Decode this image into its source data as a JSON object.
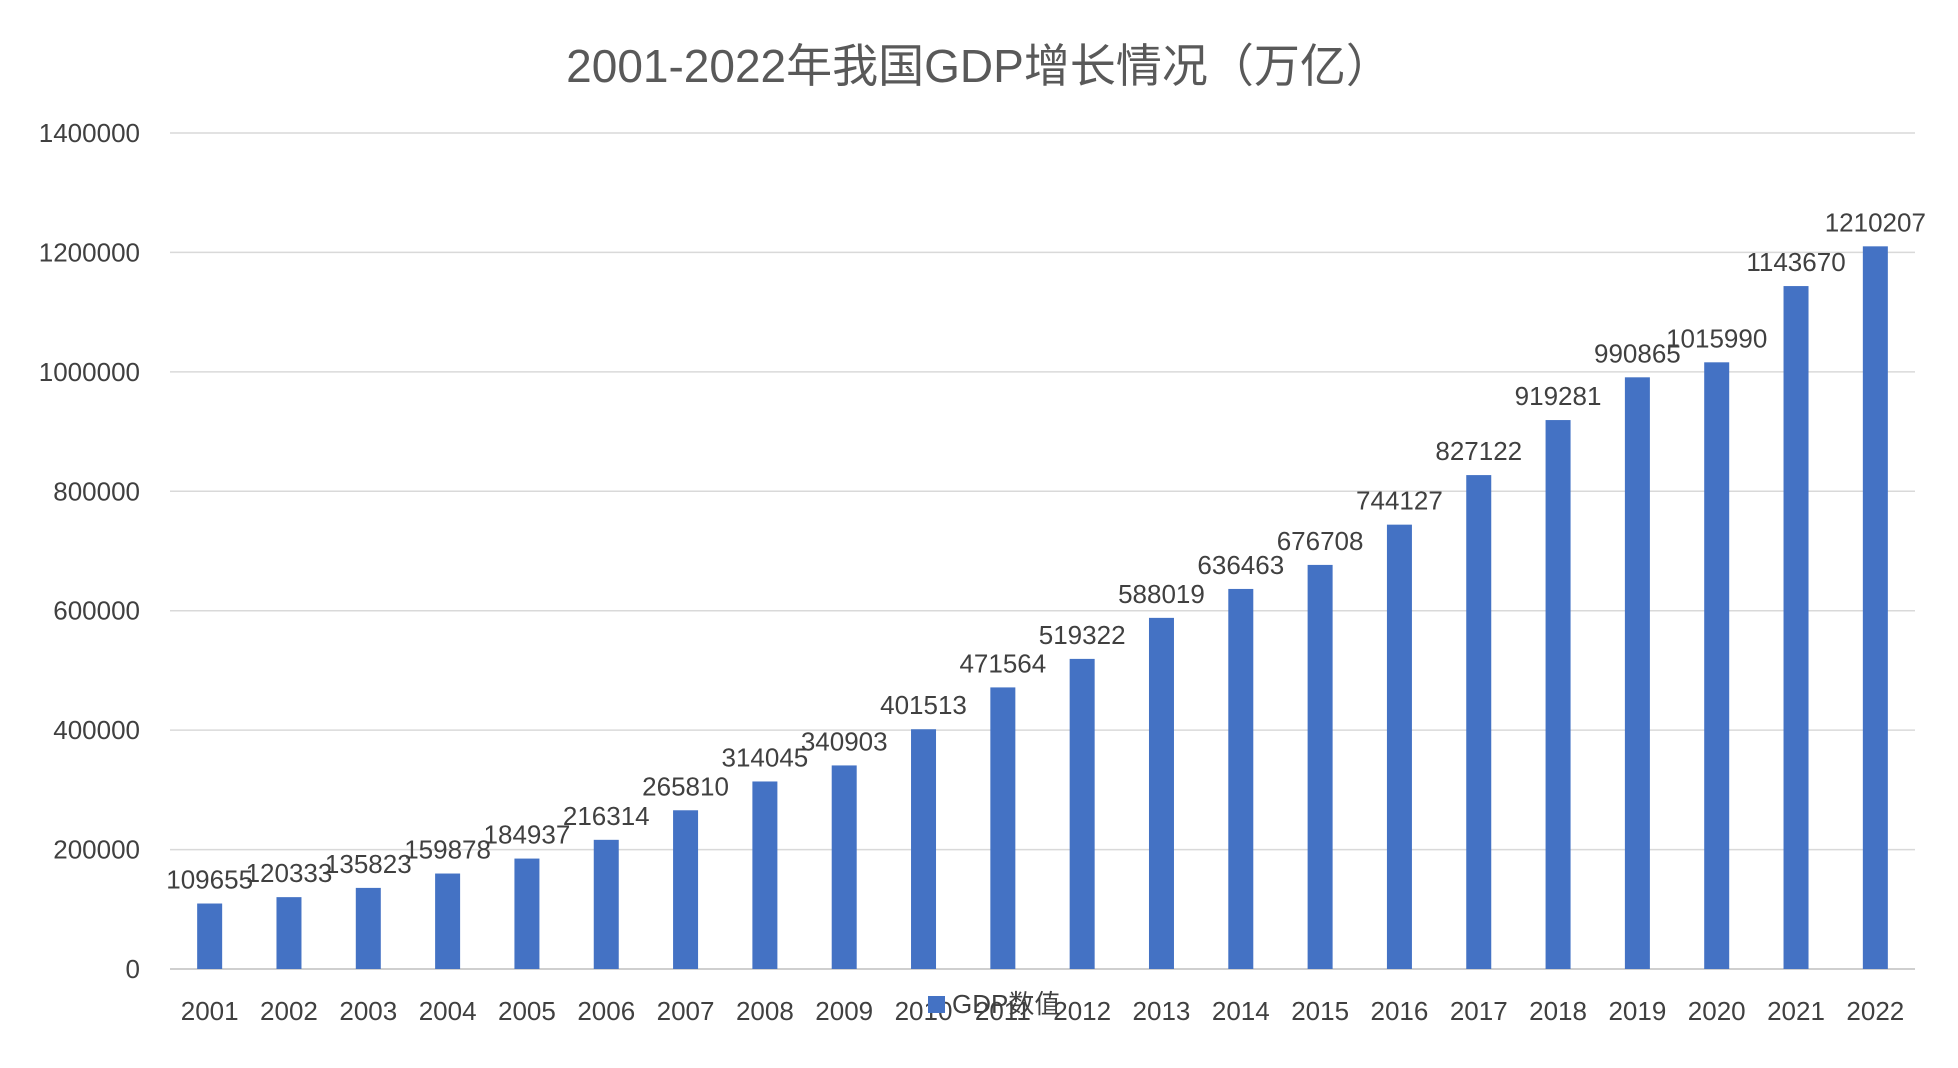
{
  "chart_data": {
    "type": "bar",
    "title": "2001-2022年我国GDP增长情况（万亿）",
    "categories": [
      "2001",
      "2002",
      "2003",
      "2004",
      "2005",
      "2006",
      "2007",
      "2008",
      "2009",
      "2010",
      "2011",
      "2012",
      "2013",
      "2014",
      "2015",
      "2016",
      "2017",
      "2018",
      "2019",
      "2020",
      "2021",
      "2022"
    ],
    "series": [
      {
        "name": "GDP数值",
        "values": [
          109655,
          120333,
          135823,
          159878,
          184937,
          216314,
          265810,
          314045,
          340903,
          401513,
          471564,
          519322,
          588019,
          636463,
          676708,
          744127,
          827122,
          919281,
          990865,
          1015990,
          1143670,
          1210207
        ]
      }
    ],
    "ylim": [
      0,
      1400000
    ],
    "yticks": [
      "0",
      "200000",
      "400000",
      "600000",
      "800000",
      "1000000",
      "1200000",
      "1400000"
    ],
    "grid": true,
    "data_labels": true,
    "legend_position": "bottom",
    "colors": {
      "bar": "#4472C4",
      "grid": "#D9D9D9",
      "text": "#404040",
      "title": "#595959"
    }
  }
}
